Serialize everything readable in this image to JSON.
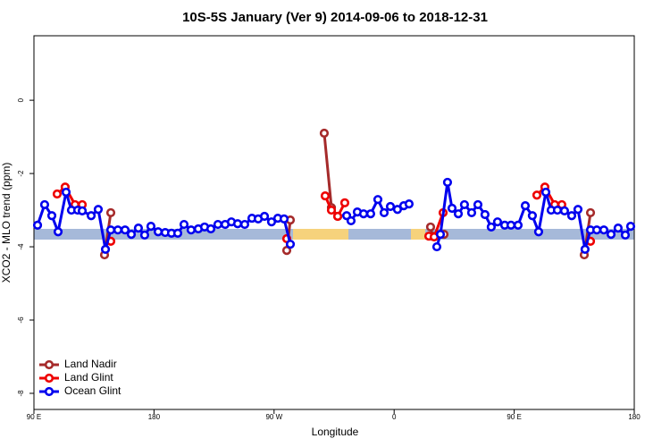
{
  "chart_data": {
    "type": "line",
    "title": "10S-5S January (Ver 9)   2014-09-06 to 2018-12-31",
    "x_label": "Longitude",
    "y_label": "XCO2 - MLO trend (ppm)",
    "xlim": [
      90,
      540
    ],
    "ylim": [
      -8.44,
      1.76
    ],
    "xticks": [
      {
        "value": 90,
        "label": "90 E"
      },
      180,
      {
        "value": 270,
        "label": "90 W"
      },
      {
        "value": 360,
        "label": "0"
      },
      {
        "value": 450,
        "label": "90 E"
      },
      {
        "value": 540,
        "label": "180"
      }
    ],
    "yticks": [
      0,
      -2,
      -4,
      -6,
      -8
    ],
    "legend": "bottom-left",
    "series": [
      {
        "name": "Land Nadir",
        "color": "#a52a2a",
        "x": [
          142.9,
          147.6,
          null,
          279.5,
          282.2,
          null,
          307.6,
          313.0,
          317.7,
          null,
          387.3,
          388.7,
          397.4,
          null,
          502.5,
          507.2
        ],
        "values": [
          -4.22,
          -3.07,
          null,
          -4.1,
          -3.27,
          null,
          -0.9,
          -2.93,
          -3.17,
          null,
          -3.46,
          -3.71,
          -3.66,
          null,
          -4.22,
          -3.07
        ]
      },
      {
        "name": "Land Glint",
        "color": "#ee0000",
        "x": [
          107.4,
          113.4,
          120.8,
          126.2,
          null,
          147.6,
          null,
          279.5,
          null,
          308.3,
          313.0,
          317.7,
          323.0,
          null,
          386.0,
          390.0,
          396.7,
          null,
          467.0,
          473.0,
          480.4,
          485.7,
          null,
          507.2
        ],
        "values": [
          -2.56,
          -2.37,
          -2.85,
          -2.85,
          null,
          -3.85,
          null,
          -3.78,
          null,
          -2.61,
          -3.0,
          -3.17,
          -2.8,
          null,
          -3.71,
          -3.73,
          -3.07,
          null,
          -2.59,
          -2.37,
          -2.85,
          -2.85,
          null,
          -3.85
        ]
      },
      {
        "name": "Ocean Glint",
        "color": "#0000ee",
        "x": [
          92.7,
          98.0,
          103.4,
          108.1,
          114.1,
          118.1,
          122.8,
          126.2,
          132.9,
          138.2,
          143.6,
          147.6,
          152.9,
          158.3,
          163.0,
          168.3,
          173.0,
          177.7,
          183.1,
          188.4,
          193.1,
          197.8,
          202.5,
          207.8,
          213.2,
          217.9,
          222.6,
          227.9,
          233.3,
          238.0,
          242.7,
          248.0,
          253.4,
          258.1,
          262.8,
          268.1,
          272.8,
          277.5,
          282.2,
          null,
          324.4,
          327.7,
          332.4,
          337.1,
          342.4,
          347.8,
          352.5,
          357.2,
          362.5,
          367.2,
          371.2,
          null,
          392.0,
          394.7,
          400.0,
          403.4,
          408.1,
          412.7,
          418.1,
          422.8,
          428.1,
          432.8,
          437.5,
          442.9,
          447.6,
          452.9,
          458.3,
          463.6,
          468.3,
          473.7,
          477.7,
          482.4,
          487.7,
          493.1,
          497.8,
          503.1,
          507.2,
          511.9,
          517.2,
          522.6,
          527.9,
          533.3,
          537.3
        ],
        "values": [
          -3.41,
          -2.85,
          -3.15,
          -3.59,
          -2.51,
          -3.0,
          -3.0,
          -3.02,
          -3.15,
          -2.98,
          -4.07,
          -3.54,
          -3.54,
          -3.54,
          -3.66,
          -3.49,
          -3.68,
          -3.44,
          -3.59,
          -3.61,
          -3.63,
          -3.63,
          -3.39,
          -3.54,
          -3.51,
          -3.46,
          -3.51,
          -3.39,
          -3.39,
          -3.32,
          -3.37,
          -3.39,
          -3.22,
          -3.24,
          -3.17,
          -3.32,
          -3.22,
          -3.24,
          -3.93,
          null,
          -3.15,
          -3.29,
          -3.05,
          -3.1,
          -3.1,
          -2.71,
          -3.07,
          -2.9,
          -2.98,
          -2.88,
          -2.83,
          null,
          -4.0,
          -3.66,
          -2.24,
          -2.95,
          -3.1,
          -2.85,
          -3.07,
          -2.85,
          -3.12,
          -3.46,
          -3.32,
          -3.41,
          -3.41,
          -3.41,
          -2.88,
          -3.15,
          -3.59,
          -2.51,
          -3.0,
          -3.0,
          -3.02,
          -3.15,
          -2.98,
          -4.07,
          -3.54,
          -3.54,
          -3.54,
          -3.66,
          -3.49,
          -3.68,
          -3.44
        ]
      }
    ]
  }
}
